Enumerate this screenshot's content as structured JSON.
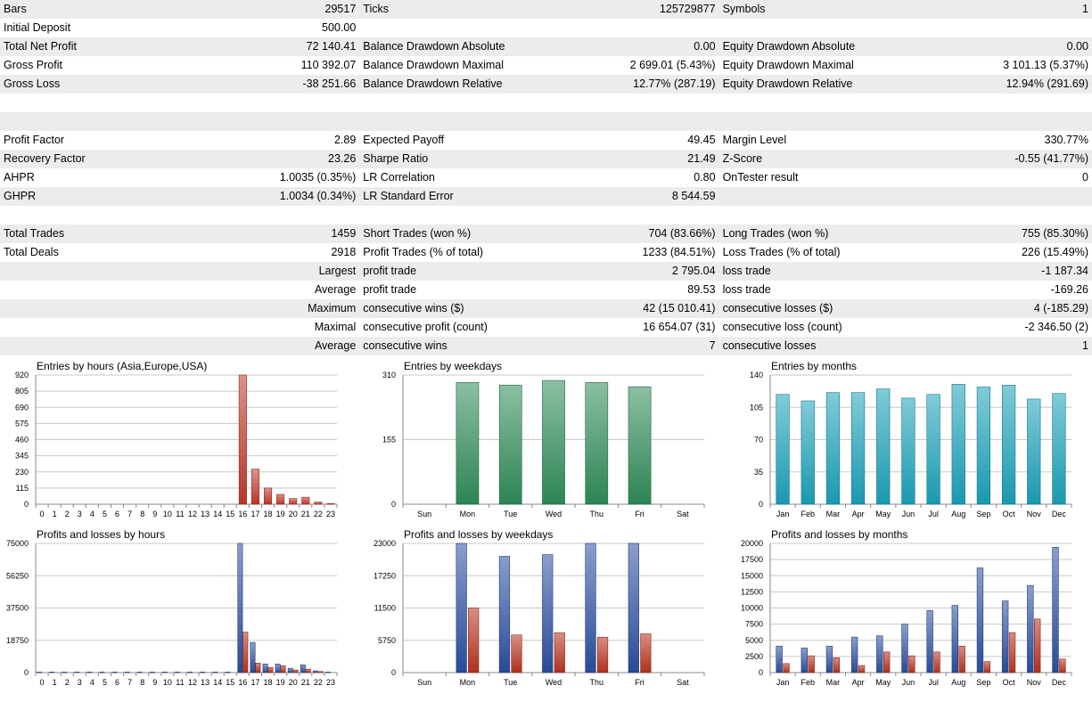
{
  "stats": {
    "rows": [
      {
        "l1": "Bars",
        "v1": "29517",
        "l2": "Ticks",
        "v2": "125729877",
        "l3": "Symbols",
        "v3": "1",
        "shade": true
      },
      {
        "l1": "Initial Deposit",
        "v1": "500.00",
        "l2": "",
        "v2": "",
        "l3": "",
        "v3": "",
        "shade": false
      },
      {
        "l1": "Total Net Profit",
        "v1": "72 140.41",
        "l2": "Balance Drawdown Absolute",
        "v2": "0.00",
        "l3": "Equity Drawdown Absolute",
        "v3": "0.00",
        "shade": true
      },
      {
        "l1": "Gross Profit",
        "v1": "110 392.07",
        "l2": "Balance Drawdown Maximal",
        "v2": "2 699.01 (5.43%)",
        "l3": "Equity Drawdown Maximal",
        "v3": "3 101.13 (5.37%)",
        "shade": false
      },
      {
        "l1": "Gross Loss",
        "v1": "-38 251.66",
        "l2": "Balance Drawdown Relative",
        "v2": "12.77% (287.19)",
        "l3": "Equity Drawdown Relative",
        "v3": "12.94% (291.69)",
        "shade": true
      },
      {
        "l1": "",
        "v1": "",
        "l2": "",
        "v2": "",
        "l3": "",
        "v3": "",
        "shade": false
      },
      {
        "l1": "",
        "v1": "",
        "l2": "",
        "v2": "",
        "l3": "",
        "v3": "",
        "shade": true
      },
      {
        "l1": "Profit Factor",
        "v1": "2.89",
        "l2": "Expected Payoff",
        "v2": "49.45",
        "l3": "Margin Level",
        "v3": "330.77%",
        "shade": false
      },
      {
        "l1": "Recovery Factor",
        "v1": "23.26",
        "l2": "Sharpe Ratio",
        "v2": "21.49",
        "l3": "Z-Score",
        "v3": "-0.55 (41.77%)",
        "shade": true
      },
      {
        "l1": "AHPR",
        "v1": "1.0035 (0.35%)",
        "l2": "LR Correlation",
        "v2": "0.80",
        "l3": "OnTester result",
        "v3": "0",
        "shade": false
      },
      {
        "l1": "GHPR",
        "v1": "1.0034 (0.34%)",
        "l2": "LR Standard Error",
        "v2": "8 544.59",
        "l3": "",
        "v3": "",
        "shade": true
      },
      {
        "l1": "",
        "v1": "",
        "l2": "",
        "v2": "",
        "l3": "",
        "v3": "",
        "shade": false
      },
      {
        "l1": "Total Trades",
        "v1": "1459",
        "l2": "Short Trades (won %)",
        "v2": "704 (83.66%)",
        "l3": "Long Trades (won %)",
        "v3": "755 (85.30%)",
        "shade": true
      },
      {
        "l1": "Total Deals",
        "v1": "2918",
        "l2": "Profit Trades (% of total)",
        "v2": "1233 (84.51%)",
        "l3": "Loss Trades (% of total)",
        "v3": "226 (15.49%)",
        "shade": false
      },
      {
        "l1": "",
        "v1": "Largest",
        "l2": "profit trade",
        "v2": "2 795.04",
        "l3": "loss trade",
        "v3": "-1 187.34",
        "shade": true
      },
      {
        "l1": "",
        "v1": "Average",
        "l2": "profit trade",
        "v2": "89.53",
        "l3": "loss trade",
        "v3": "-169.26",
        "shade": false
      },
      {
        "l1": "",
        "v1": "Maximum",
        "l2": "consecutive wins ($)",
        "v2": "42 (15 010.41)",
        "l3": "consecutive losses ($)",
        "v3": "4 (-185.29)",
        "shade": true
      },
      {
        "l1": "",
        "v1": "Maximal",
        "l2": "consecutive profit (count)",
        "v2": "16 654.07 (31)",
        "l3": "consecutive loss (count)",
        "v3": "-2 346.50 (2)",
        "shade": false
      },
      {
        "l1": "",
        "v1": "Average",
        "l2": "consecutive wins",
        "v2": "7",
        "l3": "consecutive losses",
        "v3": "1",
        "shade": true
      },
      {
        "l1": "",
        "v1": "",
        "l2": "",
        "v2": "",
        "l3": "",
        "v3": "",
        "shade": false
      }
    ]
  },
  "chart_data": [
    {
      "id": "entries-hours",
      "type": "bar",
      "title": "Entries by hours (Asia,Europe,USA)",
      "categories": [
        "0",
        "1",
        "2",
        "3",
        "4",
        "5",
        "6",
        "7",
        "8",
        "9",
        "10",
        "11",
        "12",
        "13",
        "14",
        "15",
        "16",
        "17",
        "18",
        "19",
        "20",
        "21",
        "22",
        "23"
      ],
      "yticks": [
        "920",
        "805",
        "690",
        "575",
        "460",
        "345",
        "230",
        "115",
        "0"
      ],
      "ylim": [
        0,
        920
      ],
      "series": [
        {
          "values": [
            3,
            3,
            3,
            3,
            3,
            3,
            3,
            3,
            3,
            3,
            3,
            3,
            3,
            3,
            3,
            3,
            920,
            250,
            115,
            70,
            40,
            50,
            15,
            5
          ]
        }
      ]
    },
    {
      "id": "entries-weekdays",
      "type": "bar",
      "title": "Entries by weekdays",
      "categories": [
        "Sun",
        "Mon",
        "Tue",
        "Wed",
        "Thu",
        "Fri",
        "Sat"
      ],
      "yticks": [
        "310",
        "155",
        "0"
      ],
      "ylim": [
        0,
        310
      ],
      "series": [
        {
          "values": [
            0,
            292,
            286,
            297,
            292,
            282,
            0
          ]
        }
      ]
    },
    {
      "id": "entries-months",
      "type": "bar",
      "title": "Entries by months",
      "categories": [
        "Jan",
        "Feb",
        "Mar",
        "Apr",
        "May",
        "Jun",
        "Jul",
        "Aug",
        "Sep",
        "Oct",
        "Nov",
        "Dec"
      ],
      "yticks": [
        "140",
        "105",
        "70",
        "35",
        "0"
      ],
      "ylim": [
        0,
        140
      ],
      "series": [
        {
          "values": [
            119,
            112,
            121,
            121,
            125,
            115,
            119,
            130,
            127,
            129,
            114,
            120
          ]
        }
      ]
    },
    {
      "id": "pl-hours",
      "type": "bar",
      "title": "Profits and losses by hours",
      "categories": [
        "0",
        "1",
        "2",
        "3",
        "4",
        "5",
        "6",
        "7",
        "8",
        "9",
        "10",
        "11",
        "12",
        "13",
        "14",
        "15",
        "16",
        "17",
        "18",
        "19",
        "20",
        "21",
        "22",
        "23"
      ],
      "yticks": [
        "75000",
        "56250",
        "37500",
        "18750",
        "0"
      ],
      "ylim": [
        0,
        75000
      ],
      "series": [
        {
          "values": [
            300,
            300,
            300,
            300,
            300,
            300,
            300,
            300,
            300,
            300,
            300,
            300,
            300,
            300,
            300,
            300,
            75000,
            17500,
            5000,
            5000,
            2500,
            4500,
            1000,
            300
          ]
        },
        {
          "values": [
            200,
            200,
            200,
            200,
            200,
            200,
            200,
            200,
            200,
            200,
            200,
            200,
            200,
            200,
            200,
            200,
            23500,
            5500,
            3000,
            4000,
            1500,
            2000,
            600,
            200
          ]
        }
      ]
    },
    {
      "id": "pl-weekdays",
      "type": "bar",
      "title": "Profits and losses by weekdays",
      "categories": [
        "Sun",
        "Mon",
        "Tue",
        "Wed",
        "Thu",
        "Fri",
        "Sat"
      ],
      "yticks": [
        "23000",
        "17250",
        "11500",
        "5750",
        "0"
      ],
      "ylim": [
        0,
        23000
      ],
      "series": [
        {
          "values": [
            0,
            23000,
            20700,
            21000,
            23000,
            23000,
            0
          ]
        },
        {
          "values": [
            0,
            11500,
            6700,
            7100,
            6300,
            6900,
            0
          ]
        }
      ]
    },
    {
      "id": "pl-months",
      "type": "bar",
      "title": "Profits and losses by months",
      "categories": [
        "Jan",
        "Feb",
        "Mar",
        "Apr",
        "May",
        "Jun",
        "Jul",
        "Aug",
        "Sep",
        "Oct",
        "Nov",
        "Dec"
      ],
      "yticks": [
        "20000",
        "17500",
        "15000",
        "12500",
        "10000",
        "7500",
        "5000",
        "2500",
        "0"
      ],
      "ylim": [
        0,
        20000
      ],
      "series": [
        {
          "values": [
            4100,
            3800,
            4100,
            5500,
            5700,
            7500,
            9600,
            10400,
            16200,
            11100,
            13500,
            19400
          ]
        },
        {
          "values": [
            1400,
            2600,
            2300,
            1100,
            3200,
            2600,
            3200,
            4100,
            1700,
            6200,
            8300,
            2100
          ]
        }
      ]
    }
  ],
  "colors": {
    "entries_hours_bar": "#c0392b",
    "entries_weekday_bar": "#2e8b57",
    "entries_month_bar": "#1aa0b8",
    "profit_bar": "#2a4fa0",
    "loss_bar": "#b8321f"
  }
}
